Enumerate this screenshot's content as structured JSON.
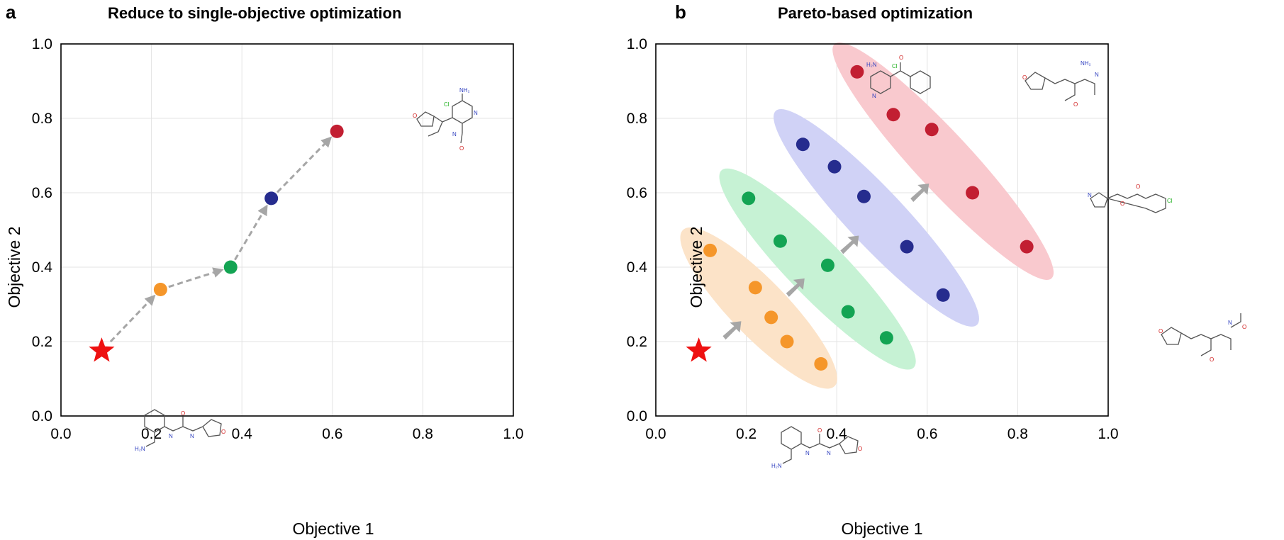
{
  "panels": [
    {
      "letter": "a",
      "title": "Reduce to single-objective optimization",
      "xlabel": "Objective 1",
      "ylabel": "Objective 2"
    },
    {
      "letter": "b",
      "title": "Pareto-based optimization",
      "xlabel": "Objective 1",
      "ylabel": "Objective 2"
    }
  ],
  "ticks": {
    "x": [
      "0.0",
      "0.2",
      "0.4",
      "0.6",
      "0.8",
      "1.0"
    ],
    "y": [
      "0.0",
      "0.2",
      "0.4",
      "0.6",
      "0.8",
      "1.0"
    ]
  },
  "colors": {
    "orange": "#F5962A",
    "green": "#13A453",
    "blue": "#262C8E",
    "red": "#C21F32",
    "star": "#EE1111",
    "arrow": "#A6A6A6",
    "band_orange": "#FCE3C8",
    "band_green": "#C6F2D4",
    "band_blue": "#D0D2F6",
    "band_red": "#F9C9CE"
  },
  "chart_data": [
    {
      "type": "scatter",
      "title": "Reduce to single-objective optimization",
      "xlabel": "Objective 1",
      "ylabel": "Objective 2",
      "xlim": [
        0,
        1
      ],
      "ylim": [
        0,
        1
      ],
      "grid": true,
      "start": {
        "x": 0.09,
        "y": 0.175,
        "marker": "star"
      },
      "path": [
        {
          "x": 0.22,
          "y": 0.34,
          "color": "orange"
        },
        {
          "x": 0.375,
          "y": 0.4,
          "color": "green"
        },
        {
          "x": 0.465,
          "y": 0.585,
          "color": "blue"
        },
        {
          "x": 0.61,
          "y": 0.765,
          "color": "red"
        }
      ]
    },
    {
      "type": "scatter",
      "title": "Pareto-based optimization",
      "xlabel": "Objective 1",
      "ylabel": "Objective 2",
      "xlim": [
        0,
        1
      ],
      "ylim": [
        0,
        1
      ],
      "grid": true,
      "start": {
        "x": 0.095,
        "y": 0.175,
        "marker": "star"
      },
      "series": [
        {
          "color": "orange",
          "x": [
            0.12,
            0.22,
            0.255,
            0.29,
            0.365
          ],
          "y": [
            0.445,
            0.345,
            0.265,
            0.2,
            0.14
          ]
        },
        {
          "color": "green",
          "x": [
            0.205,
            0.275,
            0.38,
            0.425,
            0.51
          ],
          "y": [
            0.585,
            0.47,
            0.405,
            0.28,
            0.21
          ]
        },
        {
          "color": "blue",
          "x": [
            0.325,
            0.395,
            0.46,
            0.555,
            0.635
          ],
          "y": [
            0.73,
            0.67,
            0.59,
            0.455,
            0.325
          ]
        },
        {
          "color": "red",
          "x": [
            0.445,
            0.525,
            0.61,
            0.7,
            0.82
          ],
          "y": [
            0.925,
            0.81,
            0.77,
            0.6,
            0.455
          ]
        }
      ],
      "fronts": [
        {
          "color": "band_orange",
          "x1": 0.06,
          "y1": 0.5,
          "x2": 0.395,
          "y2": 0.08
        },
        {
          "color": "band_green",
          "x1": 0.145,
          "y1": 0.66,
          "x2": 0.57,
          "y2": 0.13
        },
        {
          "color": "band_blue",
          "x1": 0.265,
          "y1": 0.82,
          "x2": 0.71,
          "y2": 0.245
        },
        {
          "color": "band_red",
          "x1": 0.395,
          "y1": 1.0,
          "x2": 0.875,
          "y2": 0.37
        }
      ],
      "progress_arrows": [
        {
          "x": 0.17,
          "y": 0.23
        },
        {
          "x": 0.31,
          "y": 0.345
        },
        {
          "x": 0.43,
          "y": 0.46
        },
        {
          "x": 0.585,
          "y": 0.6
        }
      ]
    }
  ]
}
